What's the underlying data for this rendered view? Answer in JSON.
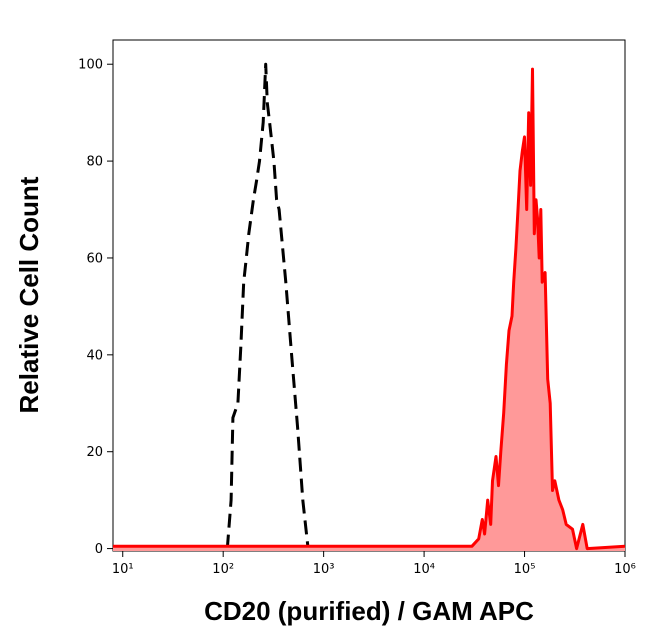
{
  "chart_data": {
    "type": "line",
    "xlabel": "CD20 (purified) / GAM APC",
    "ylabel": "Relative Cell Count",
    "xscale": "log",
    "xlim": [
      8,
      1000000
    ],
    "xticks": [
      {
        "value": 10,
        "label": "10¹"
      },
      {
        "value": 100,
        "label": "10²"
      },
      {
        "value": 1000,
        "label": "10³"
      },
      {
        "value": 10000,
        "label": "10⁴"
      },
      {
        "value": 100000,
        "label": "10⁵"
      },
      {
        "value": 1000000,
        "label": "10⁶"
      }
    ],
    "ylim": [
      -0.5,
      105
    ],
    "yticks": [
      0,
      20,
      40,
      60,
      80,
      100
    ],
    "series": [
      {
        "color": "#000000",
        "line_style": "dashed",
        "x": [
          110,
          120,
          125,
          140,
          150,
          160,
          170,
          180,
          200,
          215,
          230,
          250,
          265,
          275,
          290,
          320,
          340,
          360,
          420,
          480,
          550,
          620,
          700
        ],
        "values": [
          0,
          10,
          27,
          30,
          42,
          55,
          60,
          65,
          72,
          76,
          80,
          88,
          100,
          92,
          88,
          80,
          72,
          70,
          55,
          40,
          25,
          10,
          0
        ]
      },
      {
        "color": "#ff0000",
        "fill": "#ff9999",
        "line_style": "solid",
        "x": [
          8,
          30000,
          35000,
          38000,
          40000,
          43000,
          46000,
          48000,
          52000,
          55000,
          58000,
          62000,
          66000,
          70000,
          75000,
          78000,
          82000,
          86000,
          90000,
          95000,
          100000,
          105000,
          110000,
          115000,
          120000,
          125000,
          130000,
          135000,
          140000,
          145000,
          150000,
          160000,
          170000,
          180000,
          190000,
          200000,
          220000,
          240000,
          260000,
          300000,
          330000,
          380000,
          420000,
          1000000
        ],
        "values": [
          0.5,
          0.5,
          2,
          6,
          3,
          10,
          5,
          14,
          19,
          13,
          20,
          28,
          38,
          45,
          48,
          55,
          62,
          70,
          78,
          82,
          85,
          70,
          90,
          75,
          99,
          65,
          72,
          68,
          60,
          70,
          55,
          57,
          35,
          30,
          12,
          14,
          10,
          8,
          5,
          4,
          0,
          5,
          0,
          0.5
        ]
      }
    ]
  }
}
